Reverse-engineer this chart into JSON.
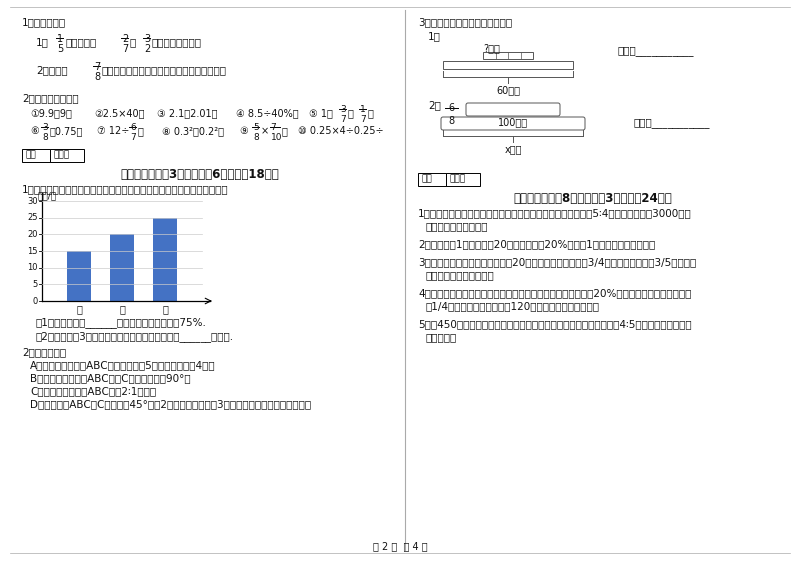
{
  "page_num": "第 2 页  共 4 页",
  "bg_color": "#ffffff",
  "bar_values": [
    15,
    20,
    25
  ],
  "bar_labels": [
    "甲",
    "乙",
    "丙"
  ],
  "bar_color": "#4472c4",
  "bar_yticks": [
    0,
    5,
    10,
    15,
    20,
    25,
    30
  ]
}
